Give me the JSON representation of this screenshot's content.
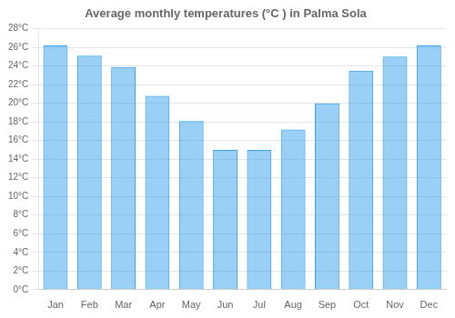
{
  "chart_data": {
    "type": "bar",
    "title": "Average monthly temperatures (°C ) in Palma Sola",
    "categories": [
      "Jan",
      "Feb",
      "Mar",
      "Apr",
      "May",
      "Jun",
      "Jul",
      "Aug",
      "Sep",
      "Oct",
      "Nov",
      "Dec"
    ],
    "values": [
      26.2,
      25.1,
      23.9,
      20.8,
      18.1,
      15.0,
      15.0,
      17.2,
      20.0,
      23.5,
      25.0,
      26.2
    ],
    "ylim": [
      0,
      28
    ],
    "yticks": [
      {
        "value": 0,
        "label": "0°C"
      },
      {
        "value": 2,
        "label": "2°C"
      },
      {
        "value": 4,
        "label": "4°C"
      },
      {
        "value": 6,
        "label": "6°C"
      },
      {
        "value": 8,
        "label": "8°C"
      },
      {
        "value": 10,
        "label": "10°C"
      },
      {
        "value": 12,
        "label": "12°C"
      },
      {
        "value": 14,
        "label": "14°C"
      },
      {
        "value": 16,
        "label": "16°C"
      },
      {
        "value": 18,
        "label": "18°C"
      },
      {
        "value": 20,
        "label": "20°C"
      },
      {
        "value": 22,
        "label": "22°C"
      },
      {
        "value": 24,
        "label": "24°C"
      },
      {
        "value": 26,
        "label": "26°C"
      },
      {
        "value": 28,
        "label": "28°C"
      }
    ],
    "grid": true
  }
}
